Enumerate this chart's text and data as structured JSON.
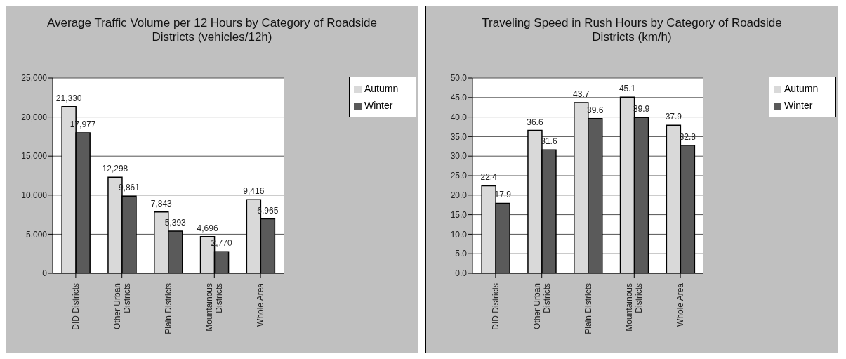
{
  "chart_data": [
    {
      "type": "bar",
      "title": "Average Traffic Volume per 12 Hours by Category of Roadside Districts (vehicles/12h)",
      "categories": [
        "DID Districts",
        "Other Urban Districts",
        "Plain Districts",
        "Mountainous Districts",
        "Whole Area"
      ],
      "series": [
        {
          "name": "Autumn",
          "color": "#d9d9d9",
          "values": [
            21330,
            12298,
            7843,
            4696,
            9416
          ],
          "value_labels": [
            "21,330",
            "12,298",
            "7,843",
            "4,696",
            "9,416"
          ]
        },
        {
          "name": "Winter",
          "color": "#5a5a5a",
          "values": [
            17977,
            9861,
            5393,
            2770,
            6965
          ],
          "value_labels": [
            "17,977",
            "9,861",
            "5,393",
            "2,770",
            "6,965"
          ]
        }
      ],
      "ylim": [
        0,
        25000
      ],
      "yticks": [
        {
          "value": 0,
          "label": "0"
        },
        {
          "value": 5000,
          "label": "5,000"
        },
        {
          "value": 10000,
          "label": "10,000"
        },
        {
          "value": 15000,
          "label": "15,000"
        },
        {
          "value": 20000,
          "label": "20,000"
        },
        {
          "value": 25000,
          "label": "25,000"
        }
      ],
      "grid": "y",
      "legend": "top right"
    },
    {
      "type": "bar",
      "title": "Traveling Speed in Rush Hours by Category of Roadside Districts (km/h)",
      "categories": [
        "DID Districts",
        "Other Urban Districts",
        "Plain Districts",
        "Mountainous Districts",
        "Whole Area"
      ],
      "series": [
        {
          "name": "Autumn",
          "color": "#d9d9d9",
          "values": [
            22.4,
            36.6,
            43.7,
            45.1,
            37.9
          ]
        },
        {
          "name": "Winter",
          "color": "#5a5a5a",
          "values": [
            17.9,
            31.6,
            39.6,
            39.9,
            32.8
          ]
        }
      ],
      "ylim": [
        0,
        50
      ],
      "yticks": [
        {
          "value": 0,
          "label": "0.0"
        },
        {
          "value": 5,
          "label": "5.0"
        },
        {
          "value": 10,
          "label": "10.0"
        },
        {
          "value": 15,
          "label": "15.0"
        },
        {
          "value": 20,
          "label": "20.0"
        },
        {
          "value": 25,
          "label": "25.0"
        },
        {
          "value": 30,
          "label": "30.0"
        },
        {
          "value": 35,
          "label": "35.0"
        },
        {
          "value": 40,
          "label": "40.0"
        },
        {
          "value": 45,
          "label": "45.0"
        },
        {
          "value": 50,
          "label": "50.0"
        }
      ],
      "grid": "y",
      "legend": "top right",
      "data_labels": true
    }
  ]
}
